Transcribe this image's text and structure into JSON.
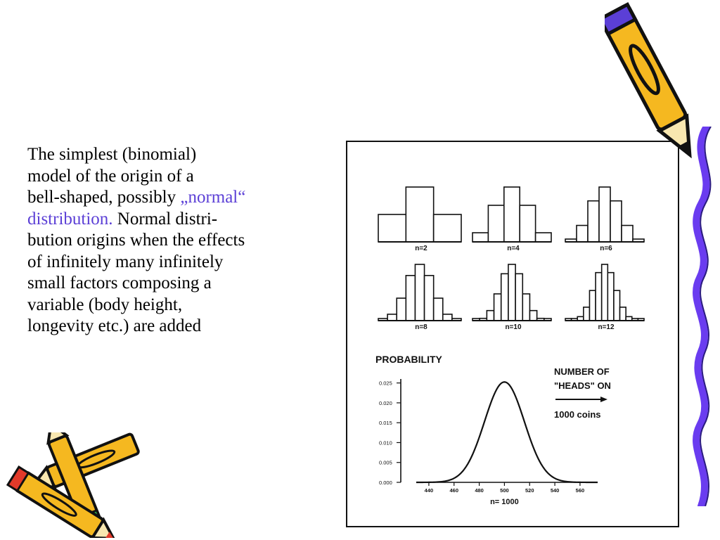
{
  "slide": {
    "text_lines": [
      [
        {
          "t": "The simplest (binomial)",
          "hl": false
        }
      ],
      [
        {
          "t": "model of the origin of a",
          "hl": false
        }
      ],
      [
        {
          "t": "bell-shaped, possibly ",
          "hl": false
        },
        {
          "t": "„normal“",
          "hl": true
        }
      ],
      [
        {
          "t": "distribution.",
          "hl": true
        },
        {
          "t": " Normal distri-",
          "hl": false
        }
      ],
      [
        {
          "t": "bution origins when the effects",
          "hl": false
        }
      ],
      [
        {
          "t": "of infinitely many infinitely",
          "hl": false
        }
      ],
      [
        {
          "t": "small factors composing a",
          "hl": false
        }
      ],
      [
        {
          "t": "variable (body height,",
          "hl": false
        }
      ],
      [
        {
          "t": "longevity etc.) are added",
          "hl": false
        }
      ]
    ],
    "colors": {
      "text": "#000000",
      "highlight": "#5b3fd6",
      "ribbon": "#6a3cf0",
      "pencil_body": "#f5b820",
      "pencil_tip_red": "#e23a2a",
      "pencil_tip_green": "#2da84a"
    },
    "icons": [
      "pencil-icon",
      "crossed-pencils-icon",
      "wavy-ribbon-icon"
    ]
  },
  "chart_data": [
    {
      "type": "bar",
      "panel": "histogram",
      "label": "n=2",
      "categories": [
        0,
        1,
        2
      ],
      "values": [
        0.25,
        0.5,
        0.25
      ],
      "ylim": [
        0,
        0.5
      ]
    },
    {
      "type": "bar",
      "panel": "histogram",
      "label": "n=4",
      "categories": [
        0,
        1,
        2,
        3,
        4
      ],
      "values": [
        0.0625,
        0.25,
        0.375,
        0.25,
        0.0625
      ],
      "ylim": [
        0,
        0.375
      ]
    },
    {
      "type": "bar",
      "panel": "histogram",
      "label": "n=6",
      "categories": [
        0,
        1,
        2,
        3,
        4,
        5,
        6
      ],
      "values": [
        0.016,
        0.094,
        0.234,
        0.313,
        0.234,
        0.094,
        0.016
      ],
      "ylim": [
        0,
        0.313
      ]
    },
    {
      "type": "bar",
      "panel": "histogram",
      "label": "n=8",
      "categories": [
        0,
        1,
        2,
        3,
        4,
        5,
        6,
        7,
        8
      ],
      "values": [
        0.004,
        0.031,
        0.109,
        0.219,
        0.273,
        0.219,
        0.109,
        0.031,
        0.004
      ],
      "ylim": [
        0,
        0.273
      ]
    },
    {
      "type": "bar",
      "panel": "histogram",
      "label": "n=10",
      "categories": [
        0,
        1,
        2,
        3,
        4,
        5,
        6,
        7,
        8,
        9,
        10
      ],
      "values": [
        0.001,
        0.01,
        0.044,
        0.117,
        0.205,
        0.246,
        0.205,
        0.117,
        0.044,
        0.01,
        0.001
      ],
      "ylim": [
        0,
        0.246
      ]
    },
    {
      "type": "bar",
      "panel": "histogram",
      "label": "n=12",
      "categories": [
        0,
        1,
        2,
        3,
        4,
        5,
        6,
        7,
        8,
        9,
        10,
        11,
        12
      ],
      "values": [
        0.0002,
        0.003,
        0.016,
        0.054,
        0.121,
        0.193,
        0.226,
        0.193,
        0.121,
        0.054,
        0.016,
        0.003,
        0.0002
      ],
      "ylim": [
        0,
        0.226
      ]
    },
    {
      "type": "line",
      "panel": "curve",
      "title": "PROBABILITY",
      "annotation_lines": [
        "NUMBER OF",
        "\"HEADS\" ON",
        "1000 coins"
      ],
      "xlabel": "n= 1000",
      "x_ticks": [
        440,
        460,
        480,
        500,
        520,
        540,
        560
      ],
      "y_ticks": [
        "0.000",
        "0.005",
        "0.010",
        "0.015",
        "0.020",
        "0.025"
      ],
      "xlim": [
        430,
        574
      ],
      "ylim": [
        0,
        0.026
      ],
      "mean": 500,
      "sd": 15.8
    }
  ]
}
